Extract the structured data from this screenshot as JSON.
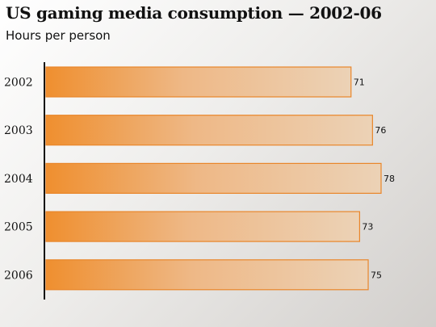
{
  "chart_data": {
    "type": "bar",
    "orientation": "horizontal",
    "title": "US gaming media consumption — 2002-06",
    "subtitle": "Hours per person",
    "categories": [
      "2002",
      "2003",
      "2004",
      "2005",
      "2006"
    ],
    "values": [
      71,
      76,
      78,
      73,
      75
    ],
    "xlim": [
      0,
      80
    ],
    "grid": false,
    "colors": {
      "bar_start": "#ef8f2f",
      "bar_end": "#ecd2b6",
      "bar_border": "#e9862a"
    }
  }
}
